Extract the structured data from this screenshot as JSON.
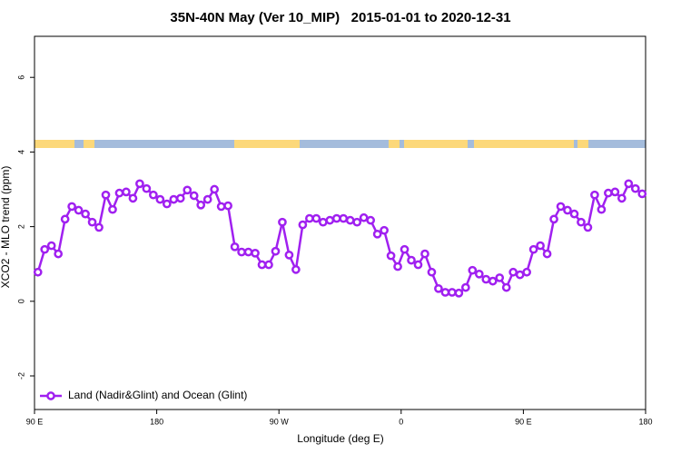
{
  "chart_data": {
    "type": "line",
    "title": "35N-40N May (Ver 10_MIP)   2015-01-01 to 2020-12-31",
    "x_label": "Longitude (deg E)",
    "y_label": "XCO2 - MLO trend (ppm)",
    "xlim": [
      90,
      540
    ],
    "ylim": [
      -2.9,
      7.1
    ],
    "xticks": [
      {
        "value": 90,
        "label": "90 E"
      },
      180,
      {
        "value": 270,
        "label": "90 W"
      },
      {
        "value": 360,
        "label": "0"
      },
      {
        "value": 450,
        "label": "90 E"
      },
      {
        "value": 540,
        "label": "180"
      }
    ],
    "yticks": [
      -2,
      0,
      2,
      4,
      6
    ],
    "legend": "lower left",
    "x": [
      92.5,
      97.5,
      102.5,
      107.5,
      112.5,
      117.5,
      122.5,
      127.5,
      132.5,
      137.5,
      142.5,
      147.5,
      152.5,
      157.5,
      162.5,
      167.5,
      172.5,
      177.5,
      182.5,
      187.5,
      192.5,
      197.5,
      202.5,
      207.5,
      212.5,
      217.5,
      222.5,
      227.5,
      232.5,
      237.5,
      242.5,
      247.5,
      252.5,
      257.5,
      262.5,
      267.5,
      272.5,
      277.5,
      282.5,
      287.5,
      292.5,
      297.5,
      302.5,
      307.5,
      312.5,
      317.5,
      322.5,
      327.5,
      332.5,
      337.5,
      342.5,
      347.5,
      352.5,
      357.5,
      362.5,
      367.5,
      372.5,
      377.5,
      382.5,
      387.5,
      392.5,
      397.5,
      402.5,
      407.5,
      412.5,
      417.5,
      422.5,
      427.5,
      432.5,
      437.5,
      442.5,
      447.5,
      452.5,
      457.5,
      462.5,
      467.5,
      472.5,
      477.5,
      482.5,
      487.5,
      492.5,
      497.5,
      502.5,
      507.5,
      512.5,
      517.5,
      522.5,
      527.5,
      532.5,
      537.5
    ],
    "series": [
      {
        "name": "Land (Nadir&Glint) and Ocean (Glint)",
        "color": "#a020f0",
        "values": [
          0.78,
          1.39,
          1.49,
          1.27,
          2.2,
          2.54,
          2.44,
          2.34,
          2.12,
          1.98,
          2.85,
          2.46,
          2.9,
          2.93,
          2.76,
          3.15,
          3.02,
          2.85,
          2.73,
          2.61,
          2.73,
          2.76,
          2.98,
          2.83,
          2.58,
          2.73,
          3.0,
          2.54,
          2.56,
          1.46,
          1.32,
          1.32,
          1.29,
          0.98,
          0.98,
          1.34,
          2.12,
          1.24,
          0.85,
          2.05,
          2.22,
          2.22,
          2.12,
          2.17,
          2.22,
          2.22,
          2.17,
          2.12,
          2.24,
          2.17,
          1.8,
          1.9,
          1.22,
          0.93,
          1.39,
          1.1,
          0.98,
          1.27,
          0.78,
          0.34,
          0.24,
          0.24,
          0.22,
          0.37,
          0.83,
          0.73,
          0.59,
          0.54,
          0.63,
          0.37,
          0.78,
          0.71,
          0.78,
          1.39,
          1.49,
          1.27,
          2.2,
          2.54,
          2.44,
          2.34,
          2.12,
          1.98,
          2.85,
          2.46,
          2.9,
          2.93,
          2.76,
          3.15,
          3.02,
          2.88
        ]
      }
    ]
  }
}
